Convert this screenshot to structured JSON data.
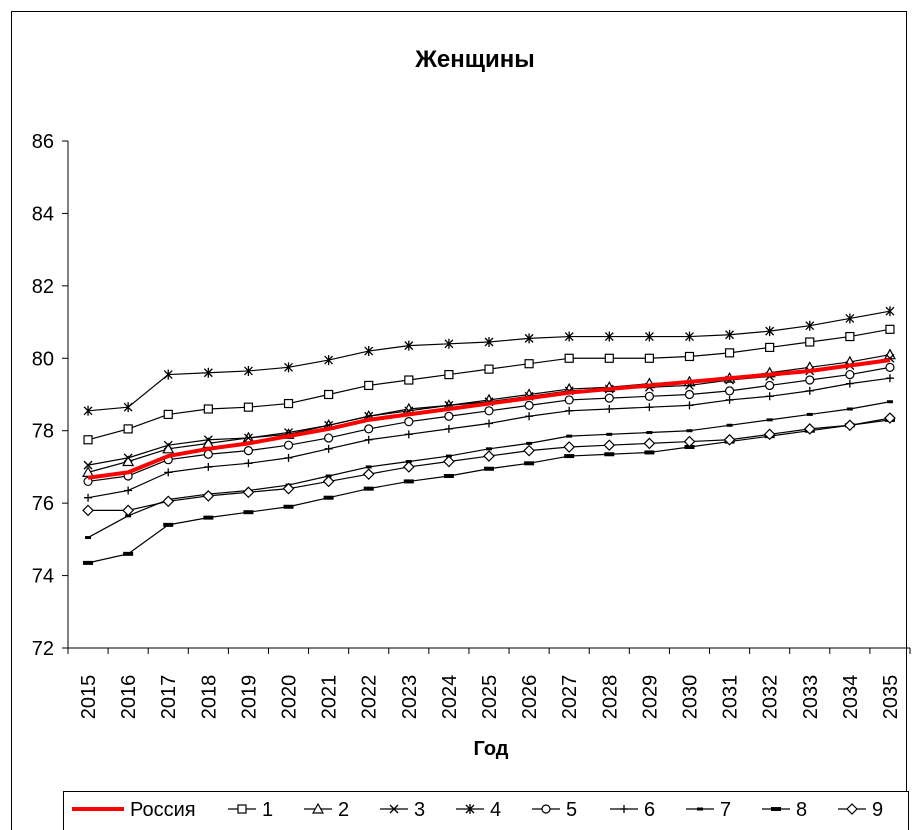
{
  "chart_data": {
    "type": "line",
    "title": "Женщины",
    "xlabel": "Год",
    "ylabel": "",
    "ylim": [
      72,
      86
    ],
    "yticks": [
      72,
      74,
      76,
      78,
      80,
      82,
      84,
      86
    ],
    "grid": false,
    "legend_position": "bottom",
    "x": [
      2015,
      2016,
      2017,
      2018,
      2019,
      2020,
      2021,
      2022,
      2023,
      2024,
      2025,
      2026,
      2027,
      2028,
      2029,
      2030,
      2031,
      2032,
      2033,
      2034,
      2035
    ],
    "series": [
      {
        "name": "Россия",
        "color": "#ff0000",
        "marker": "none",
        "values": [
          76.7,
          76.85,
          77.3,
          77.5,
          77.65,
          77.85,
          78.05,
          78.3,
          78.45,
          78.6,
          78.75,
          78.9,
          79.05,
          79.15,
          79.25,
          79.35,
          79.45,
          79.55,
          79.65,
          79.8,
          79.95
        ]
      },
      {
        "name": "1",
        "color": "#000000",
        "marker": "square",
        "values": [
          77.75,
          78.05,
          78.45,
          78.6,
          78.65,
          78.75,
          79.0,
          79.25,
          79.4,
          79.55,
          79.7,
          79.85,
          80.0,
          80.0,
          80.0,
          80.05,
          80.15,
          80.3,
          80.45,
          80.6,
          80.8
        ]
      },
      {
        "name": "2",
        "color": "#000000",
        "marker": "triangle",
        "values": [
          76.85,
          77.15,
          77.5,
          77.65,
          77.8,
          77.9,
          78.15,
          78.4,
          78.6,
          78.7,
          78.85,
          79.0,
          79.15,
          79.2,
          79.3,
          79.35,
          79.45,
          79.6,
          79.75,
          79.9,
          80.1
        ]
      },
      {
        "name": "3",
        "color": "#000000",
        "marker": "x",
        "values": [
          77.05,
          77.25,
          77.6,
          77.75,
          77.8,
          77.95,
          78.15,
          78.4,
          78.55,
          78.7,
          78.8,
          78.95,
          79.1,
          79.15,
          79.2,
          79.25,
          79.4,
          79.5,
          79.65,
          79.8,
          80.0
        ]
      },
      {
        "name": "4",
        "color": "#000000",
        "marker": "star",
        "values": [
          78.55,
          78.65,
          79.55,
          79.6,
          79.65,
          79.75,
          79.95,
          80.2,
          80.35,
          80.4,
          80.45,
          80.55,
          80.6,
          80.6,
          80.6,
          80.6,
          80.65,
          80.75,
          80.9,
          81.1,
          81.3
        ]
      },
      {
        "name": "5",
        "color": "#000000",
        "marker": "circle",
        "values": [
          76.6,
          76.75,
          77.2,
          77.35,
          77.45,
          77.6,
          77.8,
          78.05,
          78.25,
          78.4,
          78.55,
          78.7,
          78.85,
          78.9,
          78.95,
          79.0,
          79.1,
          79.25,
          79.4,
          79.55,
          79.75
        ]
      },
      {
        "name": "6",
        "color": "#000000",
        "marker": "plus",
        "values": [
          76.15,
          76.35,
          76.85,
          77.0,
          77.1,
          77.25,
          77.5,
          77.75,
          77.9,
          78.05,
          78.2,
          78.4,
          78.55,
          78.6,
          78.65,
          78.7,
          78.85,
          78.95,
          79.1,
          79.3,
          79.45
        ]
      },
      {
        "name": "7",
        "color": "#000000",
        "marker": "dash",
        "values": [
          75.05,
          75.65,
          76.1,
          76.25,
          76.35,
          76.5,
          76.75,
          77.0,
          77.15,
          77.3,
          77.5,
          77.65,
          77.85,
          77.9,
          77.95,
          78.0,
          78.15,
          78.3,
          78.45,
          78.6,
          78.8
        ]
      },
      {
        "name": "8",
        "color": "#000000",
        "marker": "bar",
        "values": [
          74.35,
          74.6,
          75.4,
          75.6,
          75.75,
          75.9,
          76.15,
          76.4,
          76.6,
          76.75,
          76.95,
          77.1,
          77.3,
          77.35,
          77.4,
          77.55,
          77.7,
          77.85,
          78.0,
          78.15,
          78.3
        ]
      },
      {
        "name": "9",
        "color": "#000000",
        "marker": "diamond",
        "values": [
          75.8,
          75.8,
          76.05,
          76.2,
          76.3,
          76.4,
          76.6,
          76.8,
          77.0,
          77.15,
          77.3,
          77.45,
          77.55,
          77.6,
          77.65,
          77.7,
          77.75,
          77.9,
          78.05,
          78.15,
          78.35
        ]
      }
    ]
  }
}
